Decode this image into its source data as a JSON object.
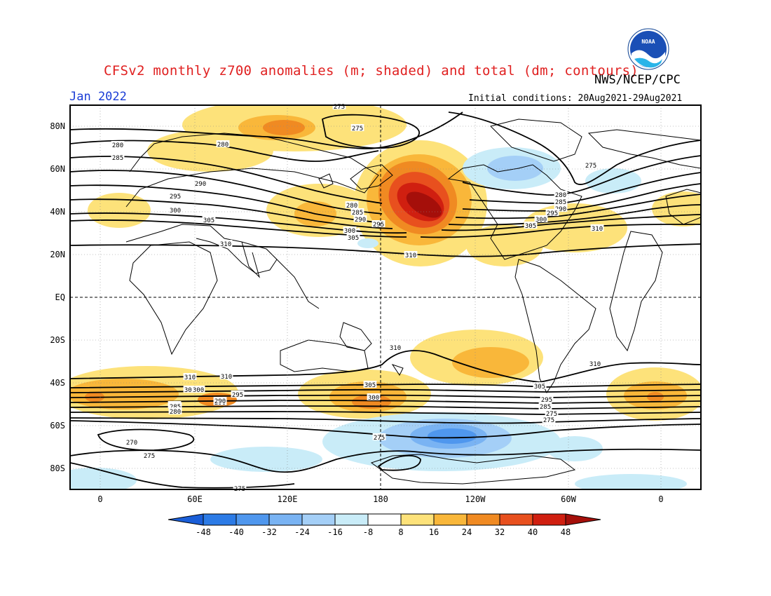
{
  "header": {
    "title": "CFSv2 monthly z700 anomalies (m; shaded) and total (dm; contours)",
    "agency": "NWS/NCEP/CPC",
    "month": "Jan 2022",
    "initial_conditions": "Initial conditions: 20Aug2021-29Aug2021",
    "logo_text": "NOAA"
  },
  "axes": {
    "lat_labels": [
      "80N",
      "60N",
      "40N",
      "20N",
      "EQ",
      "20S",
      "40S",
      "60S",
      "80S"
    ],
    "lon_labels": [
      "0",
      "60E",
      "120E",
      "180",
      "120W",
      "60W",
      "0"
    ]
  },
  "contour_labels": [
    "275",
    "280",
    "275",
    "280",
    "285",
    "290",
    "295",
    "300",
    "305",
    "310",
    "280",
    "285",
    "290",
    "295",
    "300",
    "305",
    "310",
    "280",
    "285",
    "290",
    "295",
    "300",
    "305",
    "310",
    "275",
    "310",
    "310",
    "310",
    "305",
    "300",
    "295",
    "290",
    "285",
    "280",
    "275",
    "305",
    "300",
    "310",
    "305",
    "300",
    "295",
    "290",
    "285",
    "280",
    "275",
    "270",
    "275",
    "275",
    "275"
  ],
  "colorbar": {
    "ticks": [
      "-48",
      "-40",
      "-32",
      "-24",
      "-16",
      "-8",
      "8",
      "16",
      "24",
      "32",
      "40",
      "48"
    ],
    "colors": [
      "#1a5ed8",
      "#2c7be6",
      "#4f97ee",
      "#79b3f3",
      "#a4cff7",
      "#c9ecf8",
      "#ffffff",
      "#fde27a",
      "#f9b73a",
      "#f08a22",
      "#e8501e",
      "#d01f10",
      "#a50f0a"
    ]
  }
}
